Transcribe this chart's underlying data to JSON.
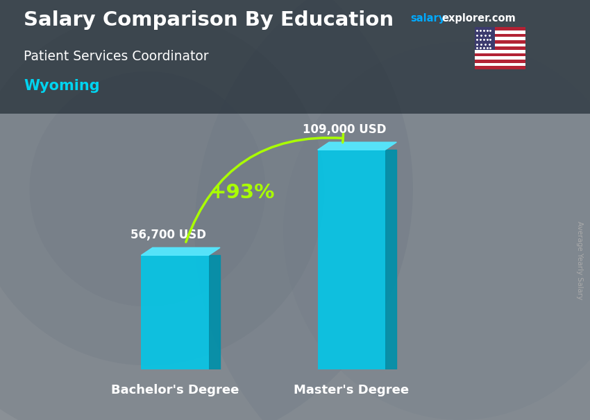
{
  "title_main": "Salary Comparison By Education",
  "title_salary": "salary",
  "title_explorer": "explorer.com",
  "subtitle": "Patient Services Coordinator",
  "location": "Wyoming",
  "ylabel": "Average Yearly Salary",
  "categories": [
    "Bachelor's Degree",
    "Master's Degree"
  ],
  "values": [
    56700,
    109000
  ],
  "labels": [
    "56,700 USD",
    "109,000 USD"
  ],
  "pct_change": "+93%",
  "bar_color_main": "#00c8ea",
  "bar_color_side": "#0090aa",
  "bar_color_top": "#55e8ff",
  "bar_width": 0.13,
  "x_positions": [
    0.28,
    0.62
  ],
  "ylim": [
    0,
    125000
  ],
  "bg_dark": "#3a4a55",
  "title_color": "#ffffff",
  "subtitle_color": "#ffffff",
  "location_color": "#00d4f0",
  "label_color": "#ffffff",
  "xlabel_color": "#ffffff",
  "pct_color": "#aaff00",
  "arrow_color": "#aaff00",
  "salary_color": "#00aaff",
  "explorer_color": "#ffffff",
  "side_label_color": "#aaaaaa",
  "figsize": [
    8.5,
    6.06
  ],
  "dpi": 100
}
